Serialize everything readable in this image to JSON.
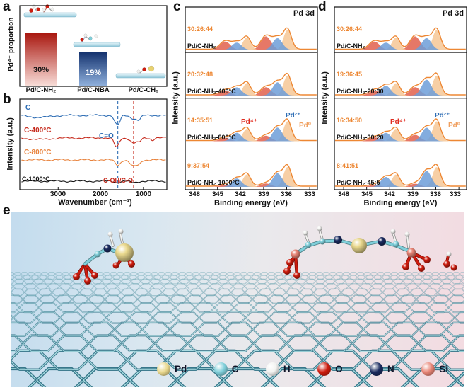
{
  "panel_labels": {
    "a": "a",
    "b": "b",
    "c": "c",
    "d": "d",
    "e": "e"
  },
  "chart_data": [
    {
      "type": "bar",
      "panel": "a",
      "ylabel": "Pd⁴⁺ proportion",
      "categories": [
        "Pd/C-NH₂",
        "Pd/C-NBA",
        "Pd/C-CH₃"
      ],
      "values": [
        30,
        19,
        0
      ],
      "bar_labels": [
        "30%",
        "19%",
        ""
      ],
      "bar_colors": [
        [
          "#a8150d",
          "#f8ddd8"
        ],
        [
          "#14326e",
          "#8fb0dc"
        ],
        null
      ]
    },
    {
      "type": "line",
      "panel": "b",
      "ylabel": "Intensity (a.u.)",
      "xlabel": "Wavenumber (cm⁻¹)",
      "xticks": [
        "3000",
        "2000",
        "1000"
      ],
      "xrange": [
        3900,
        450
      ],
      "series": [
        {
          "label": "C",
          "color": "#2e6db4",
          "baseline": 28,
          "dips": [
            [
              3430,
              3,
              220
            ],
            [
              1630,
              12,
              55
            ],
            [
              1560,
              5,
              40
            ],
            [
              1200,
              5,
              90
            ],
            [
              1100,
              4,
              45
            ]
          ]
        },
        {
          "label": "C-400°C",
          "color": "#c62a1c",
          "baseline": 60,
          "dips": [
            [
              3430,
              2,
              220
            ],
            [
              1630,
              13,
              55
            ],
            [
              1230,
              7,
              70
            ],
            [
              1100,
              5,
              45
            ],
            [
              790,
              3,
              35
            ]
          ]
        },
        {
          "label": "C-800°C",
          "color": "#e8823c",
          "baseline": 91,
          "dips": [
            [
              1600,
              7,
              60
            ],
            [
              1230,
              9,
              80
            ],
            [
              1100,
              4,
              45
            ]
          ]
        },
        {
          "label": "C-1000°C",
          "color": "#151515",
          "baseline": 121,
          "dips": [
            [
              1600,
              2,
              60
            ],
            [
              1230,
              2,
              80
            ]
          ]
        }
      ],
      "annotations": [
        {
          "label": "C=O",
          "color": "#2e6db4",
          "wavenumber": 1600
        },
        {
          "label": "C-OH/C-O",
          "color": "#c62a1c",
          "wavenumber": 1230
        }
      ]
    },
    {
      "type": "area",
      "panel": "c",
      "title": "Pd 3d",
      "ylabel": "Intensity (a.u.)",
      "xlabel": "Binding energy (eV)",
      "xticks": [
        "348",
        "345",
        "342",
        "339",
        "336",
        "333"
      ],
      "envelope_color": "#ed8733",
      "species": [
        {
          "label": "Pd⁴⁺",
          "color": "#e02b1f",
          "fill": "#e2604c",
          "be": [
            338.7,
            344.0
          ]
        },
        {
          "label": "Pd²⁺",
          "color": "#2e6db4",
          "fill": "#6d9dd8",
          "be": [
            337.2,
            342.5
          ]
        },
        {
          "label": "Pd⁰",
          "color": "#f0a060",
          "fill": "#f6c795",
          "be": [
            335.9,
            341.2
          ]
        }
      ],
      "spectra": [
        {
          "ratio": "30:26:44",
          "name": "Pd/C-NH₂",
          "values": [
            30,
            26,
            44
          ]
        },
        {
          "ratio": "20:32:48",
          "name": "Pd/C-NH₂-400°C",
          "values": [
            20,
            32,
            48
          ]
        },
        {
          "ratio": "14:35:51",
          "name": "Pd/C-NH₂-800°C",
          "values": [
            14,
            35,
            51
          ]
        },
        {
          "ratio": "9:37:54",
          "name": "Pd/C-NH₂-1000°C",
          "values": [
            9,
            37,
            54
          ]
        }
      ]
    },
    {
      "type": "area",
      "panel": "d",
      "title": "Pd 3d",
      "ylabel": "Intensity (a.u.)",
      "xlabel": "Binding energy (eV)",
      "xticks": [
        "348",
        "345",
        "342",
        "339",
        "336",
        "333"
      ],
      "envelope_color": "#ed8733",
      "species": [
        {
          "label": "Pd⁴⁺",
          "color": "#e02b1f",
          "fill": "#e2604c",
          "be": [
            338.7,
            344.0
          ]
        },
        {
          "label": "Pd²⁺",
          "color": "#2e6db4",
          "fill": "#6d9dd8",
          "be": [
            337.2,
            342.5
          ]
        },
        {
          "label": "Pd⁰",
          "color": "#f0a060",
          "fill": "#f6c795",
          "be": [
            335.9,
            341.2
          ]
        }
      ],
      "spectra": [
        {
          "ratio": "30:26:44",
          "name": "Pd/C-NH₂",
          "values": [
            30,
            26,
            44
          ]
        },
        {
          "ratio": "19:36:45",
          "name": "Pd/C-NH₂-20:30",
          "values": [
            19,
            36,
            45
          ]
        },
        {
          "ratio": "16:34:50",
          "name": "Pd/C-NH₂-30:20",
          "values": [
            16,
            34,
            50
          ]
        },
        {
          "ratio": "8:41:51",
          "name": "Pd/C-NH₂-45:5",
          "values": [
            8,
            41,
            51
          ]
        }
      ]
    }
  ],
  "panel_e": {
    "legend": [
      {
        "label": "Pd",
        "color": "#ead98e"
      },
      {
        "label": "C",
        "color": "#7fcfda"
      },
      {
        "label": "H",
        "color": "#f2f2f0"
      },
      {
        "label": "O",
        "color": "#cf1c0e"
      },
      {
        "label": "N",
        "color": "#1b2b5f"
      },
      {
        "label": "Si",
        "color": "#e88576"
      }
    ]
  }
}
